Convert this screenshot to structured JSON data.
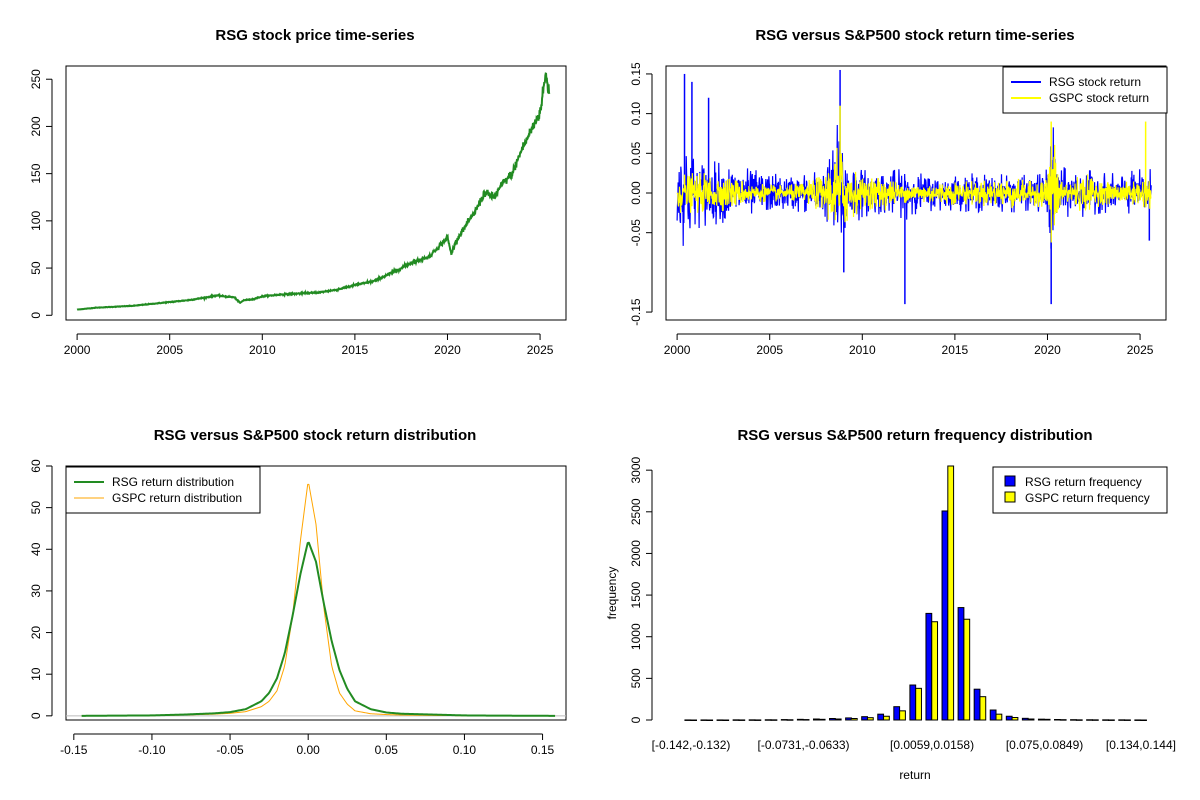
{
  "colors": {
    "price": "#228B22",
    "rsg_return": "#0000FF",
    "gspc_return": "#FFFF00",
    "rsg_density": "#228B22",
    "gspc_density": "#FFA500",
    "rsg_hist": "#0000FF",
    "gspc_hist": "#FFFF00"
  },
  "chart_data": [
    {
      "type": "line",
      "title": "RSG stock price time-series",
      "xlabel": "",
      "ylabel": "",
      "xlim": [
        1999.4,
        2026.4
      ],
      "ylim": [
        -5,
        264
      ],
      "x_ticks": [
        2000,
        2005,
        2010,
        2015,
        2020,
        2025
      ],
      "x_tick_labels": [
        "2000",
        "2005",
        "2010",
        "2015",
        "2020",
        "2025"
      ],
      "y_ticks": [
        0,
        50,
        100,
        150,
        200,
        250
      ],
      "y_tick_labels": [
        "0",
        "50",
        "100",
        "150",
        "200",
        "250"
      ],
      "grid": false,
      "series": [
        {
          "x": [
            2000.0,
            2001.0,
            2002.0,
            2003.0,
            2004.0,
            2005.0,
            2006.0,
            2007.0,
            2007.5,
            2008.0,
            2008.5,
            2008.8,
            2009.0,
            2009.5,
            2010.0,
            2011.0,
            2012.0,
            2013.0,
            2014.0,
            2015.0,
            2016.0,
            2017.0,
            2018.0,
            2019.0,
            2019.5,
            2020.0,
            2020.2,
            2020.5,
            2021.0,
            2021.5,
            2022.0,
            2022.5,
            2023.0,
            2023.5,
            2024.0,
            2024.5,
            2025.0,
            2025.3,
            2025.5
          ],
          "values": [
            6,
            8,
            9,
            10,
            12,
            14,
            16,
            19,
            21,
            20,
            19,
            13,
            16,
            17,
            20,
            22,
            23,
            24,
            27,
            32,
            36,
            45,
            55,
            62,
            72,
            83,
            65,
            80,
            95,
            110,
            130,
            125,
            140,
            150,
            175,
            195,
            215,
            255,
            235
          ]
        }
      ]
    },
    {
      "type": "line",
      "title": "RSG versus S&P500 stock return time-series",
      "xlabel": "",
      "ylabel": "",
      "xlim": [
        1999.4,
        2026.4
      ],
      "ylim": [
        -0.16,
        0.16
      ],
      "x_ticks": [
        2000,
        2005,
        2010,
        2015,
        2020,
        2025
      ],
      "x_tick_labels": [
        "2000",
        "2005",
        "2010",
        "2015",
        "2020",
        "2025"
      ],
      "y_ticks": [
        -0.15,
        -0.05,
        0.0,
        0.05,
        0.1,
        0.15
      ],
      "y_tick_labels": [
        "-0.15",
        "-0.05",
        "0.00",
        "0.05",
        "0.10",
        "0.15"
      ],
      "legend": "top-right",
      "grid": false,
      "series": [
        {
          "name": "RSG stock return",
          "envelope_x": [
            2000.0,
            2000.5,
            2001.0,
            2002.0,
            2003.0,
            2004.0,
            2005.0,
            2006.0,
            2007.0,
            2008.0,
            2008.7,
            2009.2,
            2010.0,
            2011.0,
            2012.0,
            2012.3,
            2013.0,
            2014.0,
            2015.0,
            2016.0,
            2017.0,
            2018.0,
            2019.0,
            2020.0,
            2020.2,
            2020.6,
            2021.0,
            2022.0,
            2023.0,
            2024.0,
            2025.0,
            2025.5
          ],
          "envelope_amp": [
            0.06,
            0.07,
            0.045,
            0.04,
            0.035,
            0.03,
            0.025,
            0.022,
            0.025,
            0.03,
            0.09,
            0.05,
            0.03,
            0.028,
            0.03,
            0.035,
            0.025,
            0.022,
            0.022,
            0.025,
            0.022,
            0.025,
            0.022,
            0.03,
            0.1,
            0.04,
            0.03,
            0.03,
            0.025,
            0.025,
            0.03,
            0.03
          ],
          "spikes_x": [
            2000.4,
            2000.8,
            2001.7,
            2008.8,
            2009.0,
            2012.3,
            2020.2,
            2025.5
          ],
          "spikes_y": [
            0.15,
            0.14,
            0.12,
            0.155,
            -0.1,
            -0.14,
            -0.14,
            -0.06
          ]
        },
        {
          "name": "GSPC stock return",
          "envelope_x": [
            2000.0,
            2001.0,
            2002.0,
            2003.0,
            2004.0,
            2006.0,
            2007.0,
            2008.0,
            2008.8,
            2009.2,
            2010.0,
            2011.0,
            2012.0,
            2015.0,
            2016.0,
            2018.0,
            2019.0,
            2020.0,
            2020.2,
            2020.6,
            2021.0,
            2022.0,
            2023.0,
            2024.0,
            2025.0,
            2025.5
          ],
          "envelope_amp": [
            0.025,
            0.025,
            0.025,
            0.02,
            0.012,
            0.01,
            0.015,
            0.025,
            0.07,
            0.04,
            0.018,
            0.025,
            0.012,
            0.015,
            0.015,
            0.02,
            0.015,
            0.02,
            0.09,
            0.03,
            0.015,
            0.025,
            0.015,
            0.012,
            0.02,
            0.02
          ],
          "spikes_x": [
            2008.8,
            2020.2,
            2025.3
          ],
          "spikes_y": [
            0.11,
            0.09,
            0.09
          ]
        }
      ]
    },
    {
      "type": "line",
      "title": "RSG versus S&P500 stock return distribution",
      "xlabel": "",
      "ylabel": "",
      "xlim": [
        -0.155,
        0.165
      ],
      "ylim": [
        -1,
        60
      ],
      "x_ticks": [
        -0.15,
        -0.1,
        -0.05,
        0.0,
        0.05,
        0.1,
        0.15
      ],
      "x_tick_labels": [
        "-0.15",
        "-0.10",
        "-0.05",
        "0.00",
        "0.05",
        "0.10",
        "0.15"
      ],
      "y_ticks": [
        0,
        10,
        20,
        30,
        40,
        50,
        60
      ],
      "y_tick_labels": [
        "0",
        "10",
        "20",
        "30",
        "40",
        "50",
        "60"
      ],
      "legend": "top-left",
      "grid": false,
      "series": [
        {
          "name": "RSG return distribution",
          "x": [
            -0.145,
            -0.1,
            -0.08,
            -0.06,
            -0.05,
            -0.04,
            -0.03,
            -0.025,
            -0.02,
            -0.015,
            -0.01,
            -0.005,
            0.0,
            0.005,
            0.01,
            0.015,
            0.02,
            0.025,
            0.03,
            0.04,
            0.05,
            0.06,
            0.08,
            0.1,
            0.12,
            0.158
          ],
          "values": [
            0,
            0.1,
            0.3,
            0.6,
            0.9,
            1.6,
            3.5,
            5.5,
            9,
            15,
            24,
            34,
            42,
            37,
            27,
            18,
            11,
            6.5,
            3.5,
            1.6,
            0.8,
            0.5,
            0.3,
            0.1,
            0.05,
            0
          ]
        },
        {
          "name": "GSPC return distribution",
          "x": [
            -0.145,
            -0.1,
            -0.08,
            -0.06,
            -0.05,
            -0.04,
            -0.03,
            -0.025,
            -0.02,
            -0.015,
            -0.01,
            -0.005,
            0.0,
            0.005,
            0.01,
            0.015,
            0.02,
            0.025,
            0.03,
            0.04,
            0.05,
            0.06,
            0.08,
            0.1,
            0.12,
            0.158
          ],
          "values": [
            0,
            0.05,
            0.2,
            0.4,
            0.6,
            1.0,
            2.2,
            3.5,
            6,
            12,
            24,
            42,
            56.5,
            46,
            26,
            12,
            5.5,
            2.8,
            1.2,
            0.5,
            0.3,
            0.2,
            0.1,
            0.05,
            0,
            0
          ]
        }
      ]
    },
    {
      "type": "bar",
      "title": "RSG versus S&P500 return frequency distribution",
      "xlabel": "return",
      "ylabel": "frequency",
      "ylim": [
        0,
        3050
      ],
      "y_ticks": [
        0,
        500,
        1000,
        1500,
        2000,
        2500,
        3000
      ],
      "y_tick_labels": [
        "0",
        "500",
        "1000",
        "1500",
        "2000",
        "2500",
        "3000"
      ],
      "x_tick_labels": [
        "[-0.142,-0.132)",
        "[-0.0731,-0.0633)",
        "[0.0059,0.0158)",
        "[0.075,0.0849)",
        "[0.134,0.144]"
      ],
      "x_tick_positions": [
        0,
        7,
        15,
        22,
        28
      ],
      "legend": "top-right",
      "grid": false,
      "categories_count": 29,
      "series": [
        {
          "name": "RSG return frequency",
          "values": [
            1,
            1,
            1,
            2,
            2,
            3,
            5,
            8,
            12,
            18,
            25,
            40,
            70,
            160,
            420,
            1280,
            2510,
            1350,
            370,
            120,
            45,
            20,
            10,
            6,
            4,
            3,
            2,
            2,
            1
          ]
        },
        {
          "name": "GSPC return frequency",
          "values": [
            0,
            0,
            0,
            1,
            1,
            2,
            3,
            5,
            8,
            12,
            18,
            28,
            45,
            110,
            380,
            1180,
            3050,
            1210,
            280,
            70,
            30,
            12,
            8,
            4,
            2,
            2,
            1,
            1,
            0
          ]
        }
      ]
    }
  ]
}
